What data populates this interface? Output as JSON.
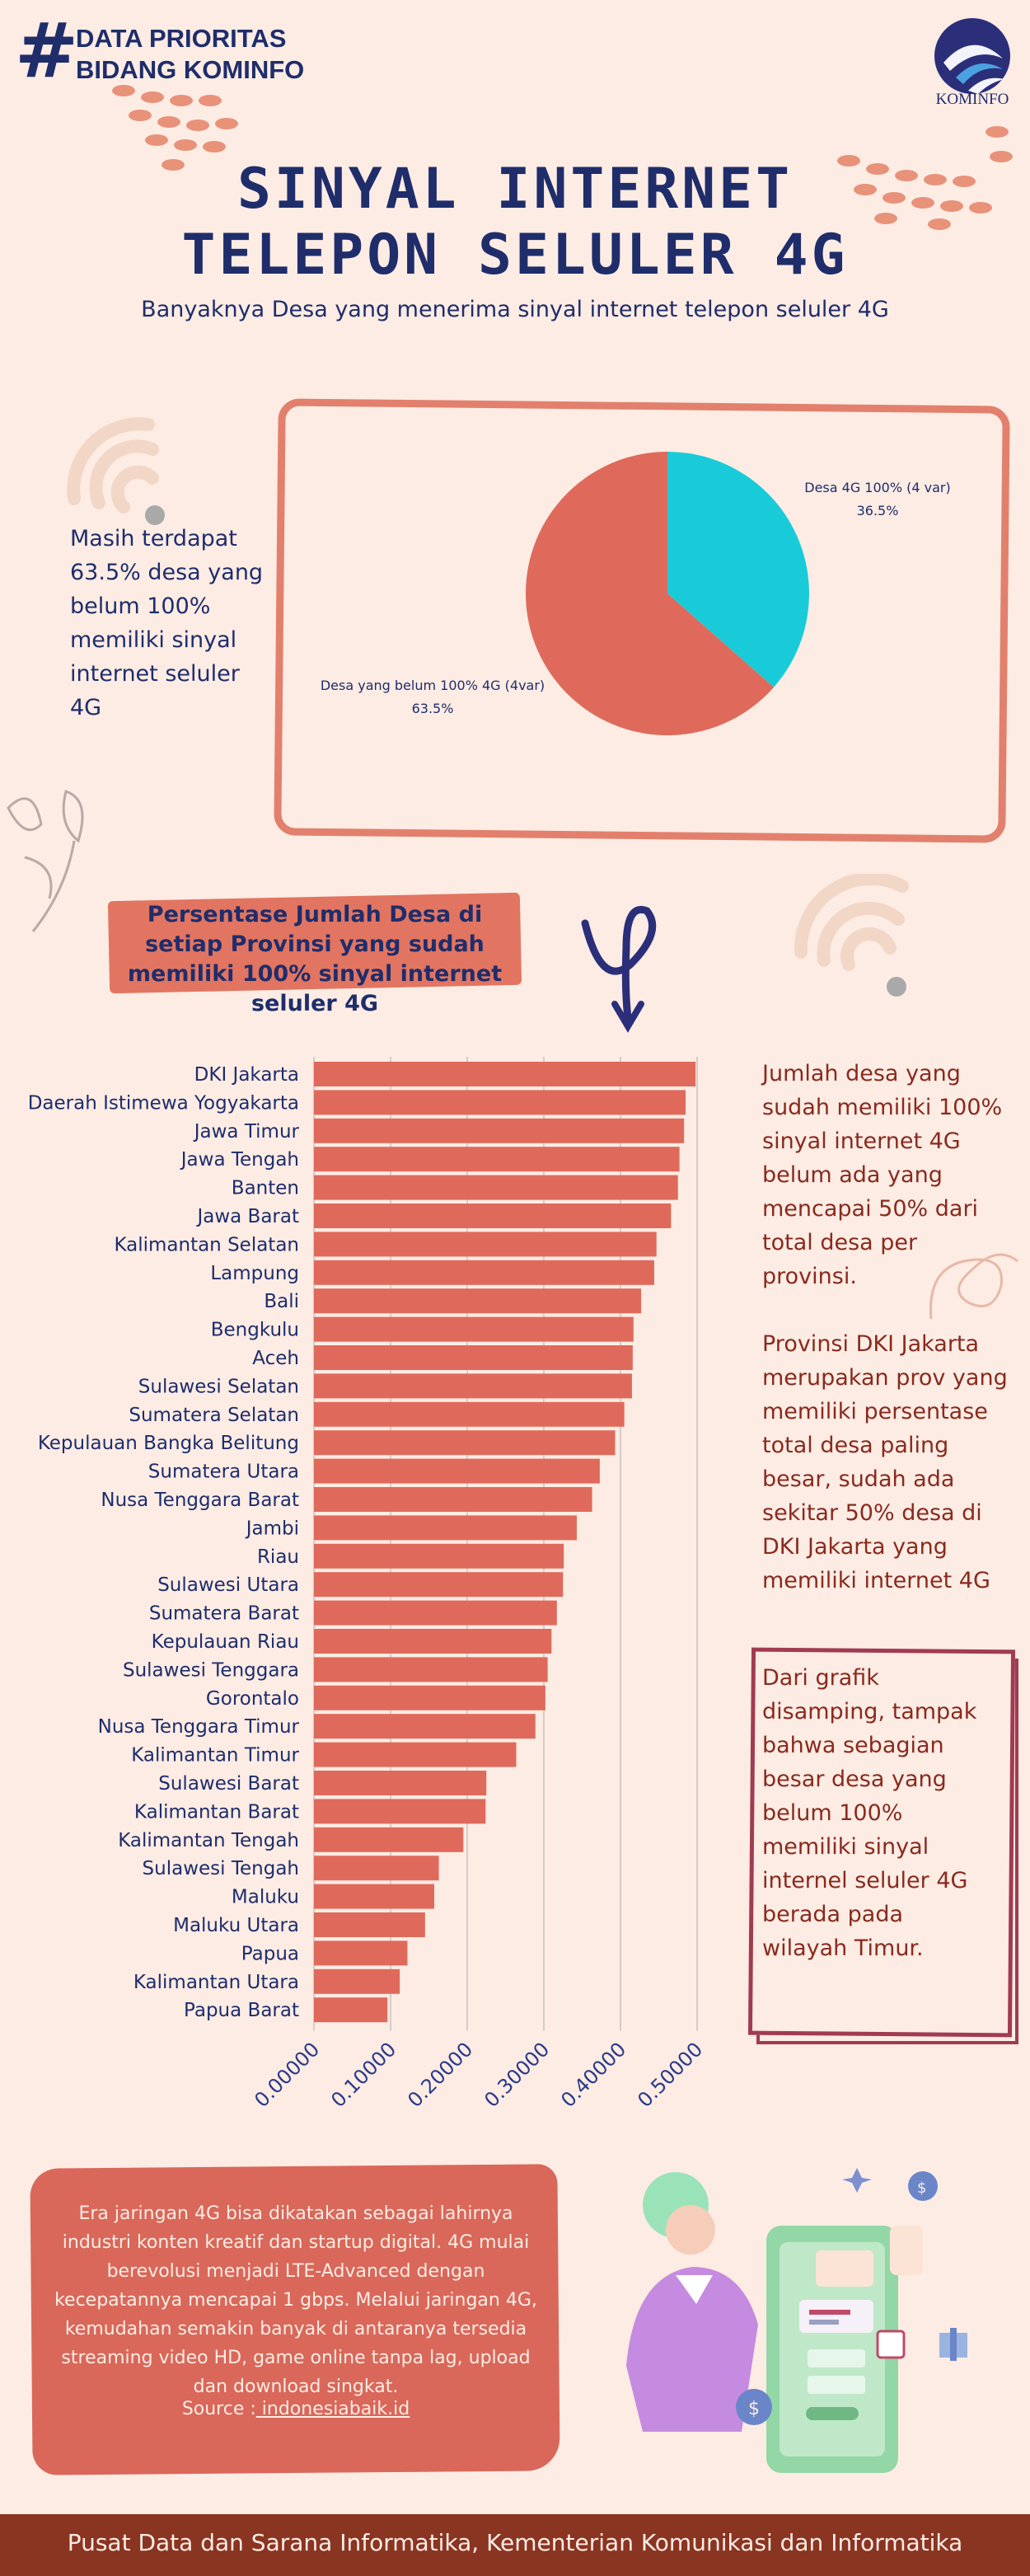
{
  "header": {
    "hash": "#",
    "line1": "DATA PRIORITAS",
    "line2": "BIDANG KOMINFO",
    "logo_text": "KOMINFO"
  },
  "title": {
    "line1": "SINYAL INTERNET",
    "line2": "TELEPON SELULER 4G",
    "subtitle": "Banyaknya Desa yang menerima sinyal internet telepon seluler 4G"
  },
  "pie_section": {
    "note": "Masih terdapat 63.5% desa yang belum 100% memiliki sinyal internet seluler 4G",
    "colors": [
      "#19cbd8",
      "#df6a5b"
    ]
  },
  "bar_section": {
    "heading": "Persentase Jumlah Desa di setiap Provinsi yang sudah memiliki 100% sinyal internet seluler 4G",
    "bar_color": "#df6a5b"
  },
  "notes": {
    "note1": "Jumlah desa yang sudah memiliki 100% sinyal internet 4G belum ada yang mencapai 50% dari total desa per provinsi.",
    "note2": "Provinsi DKI Jakarta merupakan prov yang memiliki persentase total desa paling besar, sudah ada sekitar 50% desa di DKI Jakarta yang memiliki internet 4G",
    "note3": "Dari grafik disamping, tampak bahwa sebagian besar desa yang belum 100% memiliki sinyal internel seluler 4G berada pada wilayah Timur."
  },
  "bottom": {
    "text": "Era jaringan 4G bisa dikatakan sebagai lahirnya industri konten kreatif dan startup digital. 4G mulai berevolusi menjadi LTE-Advanced dengan kecepatannya mencapai 1 gbps. Melalui jaringan 4G, kemudahan semakin banyak di antaranya tersedia streaming video HD, game online tanpa lag, upload dan download singkat.",
    "source_label": "Source :",
    "source_link": " indonesiabaik.id"
  },
  "footer": {
    "text": "Pusat Data dan Sarana Informatika, Kementerian Komunikasi dan Informatika"
  },
  "chart_data": [
    {
      "type": "pie",
      "title": "",
      "slices": [
        {
          "label": "Desa 4G 100% (4 var)",
          "value": 36.5,
          "display": "36.5%",
          "color": "#19cbd8"
        },
        {
          "label": "Desa yang belum 100% 4G (4var)",
          "value": 63.5,
          "display": "63.5%",
          "color": "#df6a5b"
        }
      ]
    },
    {
      "type": "bar",
      "orientation": "horizontal",
      "title": "Persentase Jumlah Desa di setiap Provinsi yang sudah memiliki 100% sinyal internet seluler 4G",
      "xlabel": "",
      "ylabel": "",
      "xlim": [
        0,
        0.5
      ],
      "xticks": [
        "0.00000",
        "0.10000",
        "0.20000",
        "0.30000",
        "0.40000",
        "0.50000"
      ],
      "grid": true,
      "color": "#df6a5b",
      "categories": [
        "DKI Jakarta",
        "Daerah Istimewa Yogyakarta",
        "Jawa Timur",
        "Jawa Tengah",
        "Banten",
        "Jawa Barat",
        "Kalimantan Selatan",
        "Lampung",
        "Bali",
        "Bengkulu",
        "Aceh",
        "Sulawesi Selatan",
        "Sumatera Selatan",
        "Kepulauan Bangka Belitung",
        "Sumatera Utara",
        "Nusa Tenggara Barat",
        "Jambi",
        "Riau",
        "Sulawesi Utara",
        "Sumatera Barat",
        "Kepulauan Riau",
        "Sulawesi Tenggara",
        "Gorontalo",
        "Nusa Tenggara Timur",
        "Kalimantan Timur",
        "Sulawesi Barat",
        "Kalimantan Barat",
        "Kalimantan Tengah",
        "Sulawesi Tengah",
        "Maluku",
        "Maluku Utara",
        "Papua",
        "Kalimantan Utara",
        "Papua Barat"
      ],
      "values": [
        0.498,
        0.485,
        0.483,
        0.477,
        0.475,
        0.466,
        0.447,
        0.444,
        0.427,
        0.417,
        0.416,
        0.415,
        0.405,
        0.393,
        0.373,
        0.363,
        0.343,
        0.326,
        0.325,
        0.317,
        0.31,
        0.305,
        0.302,
        0.289,
        0.264,
        0.225,
        0.224,
        0.195,
        0.163,
        0.157,
        0.145,
        0.122,
        0.112,
        0.096
      ]
    }
  ]
}
